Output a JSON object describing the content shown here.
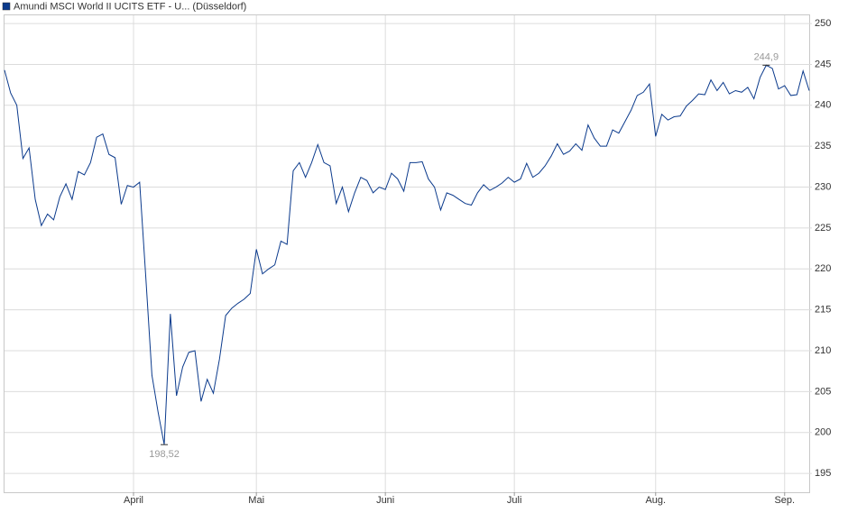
{
  "chart_data": {
    "type": "line",
    "series": [
      {
        "name": "Amundi MSCI World II UCITS ETF - U... (Düsseldorf)",
        "color": "#0b3a8c",
        "values": [
          244.3,
          241.5,
          240,
          233.5,
          234.8,
          228.5,
          225.3,
          226.7,
          226,
          228.8,
          230.4,
          228.5,
          231.9,
          231.5,
          233,
          236.1,
          236.5,
          234,
          233.6,
          227.9,
          230.2,
          230,
          230.6,
          219,
          207,
          202.5,
          198.52,
          214.5,
          204.5,
          208,
          209.8,
          210,
          203.8,
          206.5,
          204.8,
          209,
          214.3,
          215.2,
          215.8,
          216.3,
          217,
          222.4,
          219.4,
          220,
          220.5,
          223.4,
          223,
          232,
          233,
          231.2,
          233,
          235.2,
          233,
          232.6,
          228,
          230,
          227,
          229.3,
          231.2,
          230.8,
          229.3,
          230,
          229.7,
          231.7,
          231,
          229.5,
          233,
          233,
          233.1,
          231,
          230,
          227.2,
          229.3,
          229,
          228.5,
          228,
          227.8,
          229.3,
          230.3,
          229.6,
          230,
          230.5,
          231.2,
          230.6,
          231,
          232.9,
          231.2,
          231.7,
          232.6,
          233.8,
          235.3,
          234,
          234.4,
          235.3,
          234.5,
          237.6,
          236,
          235,
          235,
          237,
          236.6,
          238,
          239.4,
          241.2,
          241.6,
          242.6,
          236.2,
          238.9,
          238.2,
          238.6,
          238.7,
          239.9,
          240.6,
          241.4,
          241.3,
          243.1,
          241.8,
          242.8,
          241.4,
          241.8,
          241.6,
          242.2,
          240.8,
          243.4,
          244.9,
          244.5,
          242,
          242.4,
          241.2,
          241.3,
          244.2,
          241.8
        ]
      }
    ],
    "categories": [
      null,
      null,
      null,
      null,
      null,
      null,
      null,
      null,
      null,
      null,
      null,
      null,
      null,
      null,
      null,
      null,
      null,
      null,
      null,
      null,
      null,
      "April",
      null,
      null,
      null,
      null,
      null,
      null,
      null,
      null,
      null,
      null,
      null,
      null,
      null,
      null,
      null,
      null,
      null,
      null,
      null,
      "Mai",
      null,
      null,
      null,
      null,
      null,
      null,
      null,
      null,
      null,
      null,
      null,
      null,
      null,
      null,
      null,
      null,
      null,
      null,
      null,
      null,
      "Juni",
      null,
      null,
      null,
      null,
      null,
      null,
      null,
      null,
      null,
      null,
      null,
      null,
      null,
      null,
      null,
      null,
      null,
      null,
      null,
      null,
      "Juli",
      null,
      null,
      null,
      null,
      null,
      null,
      null,
      null,
      null,
      null,
      null,
      null,
      null,
      null,
      null,
      null,
      null,
      null,
      null,
      null,
      null,
      null,
      "Aug.",
      null,
      null,
      null,
      null,
      null,
      null,
      null,
      null,
      null,
      null,
      null,
      null,
      null,
      null,
      null,
      null,
      null,
      null,
      null,
      null,
      "Sep.",
      null,
      null,
      null,
      null
    ],
    "max_label": "244,9",
    "min_label": "198,52",
    "ylim": [
      192.7,
      251
    ],
    "yticks": [
      195,
      200,
      205,
      210,
      215,
      220,
      225,
      230,
      235,
      240,
      245,
      250
    ],
    "grid": true
  }
}
